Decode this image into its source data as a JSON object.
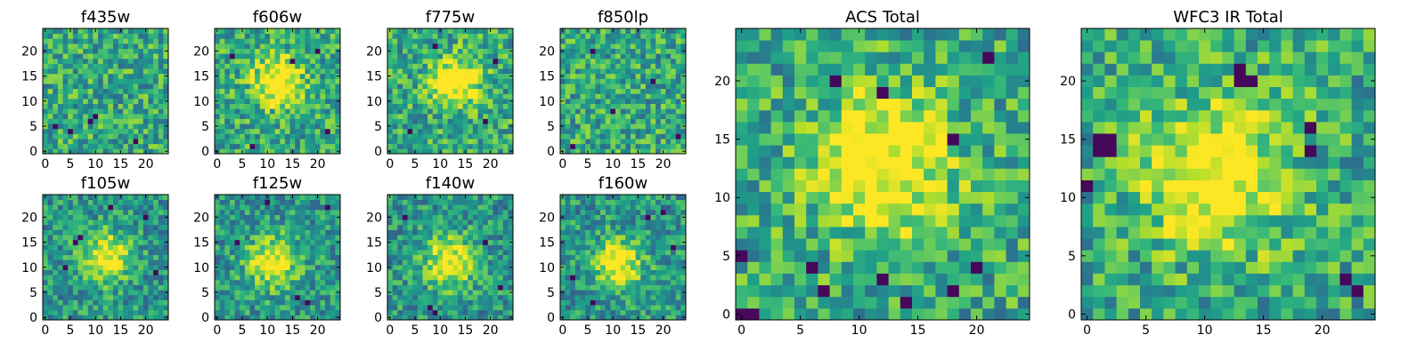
{
  "chart_data": {
    "type": "heatmap",
    "colormap": "viridis",
    "grid": false,
    "legend": "none",
    "panels": [
      {
        "title": "f435w",
        "shape": [
          25,
          25
        ],
        "xticks": [
          0,
          5,
          10,
          15,
          20
        ],
        "yticks": [
          0,
          5,
          10,
          15,
          20
        ],
        "xlim": [
          -0.5,
          24.5
        ],
        "ylim": [
          -0.5,
          24.5
        ],
        "hotspot": null,
        "dark_pixels": [
          [
            10,
            7
          ],
          [
            9,
            6
          ],
          [
            5,
            4
          ],
          [
            18,
            2
          ],
          [
            2,
            5
          ]
        ]
      },
      {
        "title": "f606w",
        "shape": [
          25,
          25
        ],
        "xticks": [
          0,
          5,
          10,
          15,
          20
        ],
        "yticks": [
          0,
          5,
          10,
          15,
          20
        ],
        "xlim": [
          -0.5,
          24.5
        ],
        "ylim": [
          -0.5,
          24.5
        ],
        "hotspot": [
          12,
          14
        ],
        "dark_pixels": [
          [
            7,
            1
          ],
          [
            22,
            4
          ],
          [
            15,
            18
          ],
          [
            3,
            19
          ],
          [
            20,
            20
          ]
        ]
      },
      {
        "title": "f775w",
        "shape": [
          25,
          25
        ],
        "xticks": [
          0,
          5,
          10,
          15,
          20
        ],
        "yticks": [
          0,
          5,
          10,
          15,
          20
        ],
        "xlim": [
          -0.5,
          24.5
        ],
        "ylim": [
          -0.5,
          24.5
        ],
        "hotspot": [
          13,
          14
        ],
        "dark_pixels": [
          [
            4,
            4
          ],
          [
            19,
            6
          ],
          [
            9,
            21
          ],
          [
            21,
            18
          ]
        ]
      },
      {
        "title": "f850lp",
        "shape": [
          25,
          25
        ],
        "xticks": [
          0,
          5,
          10,
          15,
          20
        ],
        "yticks": [
          0,
          5,
          10,
          15,
          20
        ],
        "xlim": [
          -0.5,
          24.5
        ],
        "ylim": [
          -0.5,
          24.5
        ],
        "hotspot": null,
        "dark_pixels": [
          [
            2,
            1
          ],
          [
            10,
            8
          ],
          [
            18,
            14
          ],
          [
            6,
            20
          ],
          [
            23,
            3
          ]
        ]
      },
      {
        "title": "f105w",
        "shape": [
          25,
          25
        ],
        "xticks": [
          0,
          5,
          10,
          15,
          20
        ],
        "yticks": [
          0,
          5,
          10,
          15,
          20
        ],
        "xlim": [
          -0.5,
          24.5
        ],
        "ylim": [
          -0.5,
          24.5
        ],
        "hotspot": [
          12,
          12
        ],
        "dark_pixels": [
          [
            6,
            15
          ],
          [
            7,
            16
          ],
          [
            13,
            22
          ],
          [
            4,
            10
          ],
          [
            20,
            20
          ],
          [
            22,
            9
          ]
        ]
      },
      {
        "title": "f125w",
        "shape": [
          25,
          25
        ],
        "xticks": [
          0,
          5,
          10,
          15,
          20
        ],
        "yticks": [
          0,
          5,
          10,
          15,
          20
        ],
        "xlim": [
          -0.5,
          24.5
        ],
        "ylim": [
          -0.5,
          24.5
        ],
        "hotspot": [
          11,
          11
        ],
        "dark_pixels": [
          [
            4,
            15
          ],
          [
            16,
            4
          ],
          [
            18,
            3
          ],
          [
            10,
            23
          ],
          [
            22,
            22
          ]
        ]
      },
      {
        "title": "f140w",
        "shape": [
          25,
          25
        ],
        "xticks": [
          0,
          5,
          10,
          15,
          20
        ],
        "yticks": [
          0,
          5,
          10,
          15,
          20
        ],
        "xlim": [
          -0.5,
          24.5
        ],
        "ylim": [
          -0.5,
          24.5
        ],
        "hotspot": [
          12,
          11
        ],
        "dark_pixels": [
          [
            19,
            15
          ],
          [
            8,
            2
          ],
          [
            9,
            1
          ],
          [
            3,
            20
          ],
          [
            22,
            6
          ]
        ]
      },
      {
        "title": "f160w",
        "shape": [
          25,
          25
        ],
        "xticks": [
          0,
          5,
          10,
          15,
          20
        ],
        "yticks": [
          0,
          5,
          10,
          15,
          20
        ],
        "xlim": [
          -0.5,
          24.5
        ],
        "ylim": [
          -0.5,
          24.5
        ],
        "hotspot": [
          11,
          11
        ],
        "dark_pixels": [
          [
            17,
            20
          ],
          [
            20,
            21
          ],
          [
            6,
            3
          ],
          [
            22,
            14
          ],
          [
            2,
            8
          ]
        ]
      },
      {
        "title": "ACS Total",
        "shape": [
          25,
          25
        ],
        "xticks": [
          0,
          5,
          10,
          15,
          20
        ],
        "yticks": [
          0,
          5,
          10,
          15,
          20
        ],
        "xlim": [
          -0.5,
          24.5
        ],
        "ylim": [
          -0.5,
          24.5
        ],
        "hotspot": [
          12,
          13
        ],
        "dark_pixels": [
          [
            0,
            0
          ],
          [
            1,
            0
          ],
          [
            0,
            5
          ],
          [
            6,
            4
          ],
          [
            14,
            1
          ],
          [
            18,
            15
          ],
          [
            21,
            22
          ],
          [
            8,
            20
          ],
          [
            12,
            19
          ],
          [
            18,
            2
          ],
          [
            20,
            4
          ],
          [
            7,
            2
          ],
          [
            12,
            3
          ]
        ]
      },
      {
        "title": "WFC3 IR Total",
        "shape": [
          25,
          25
        ],
        "xticks": [
          0,
          5,
          10,
          15,
          20
        ],
        "yticks": [
          0,
          5,
          10,
          15,
          20
        ],
        "xlim": [
          -0.5,
          24.5
        ],
        "ylim": [
          -0.5,
          24.5
        ],
        "hotspot": [
          11,
          12
        ],
        "dark_pixels": [
          [
            1,
            15
          ],
          [
            2,
            15
          ],
          [
            1,
            14
          ],
          [
            2,
            14
          ],
          [
            13,
            20
          ],
          [
            14,
            20
          ],
          [
            13,
            21
          ],
          [
            19,
            14
          ],
          [
            19,
            16
          ],
          [
            0,
            11
          ],
          [
            22,
            3
          ],
          [
            23,
            2
          ]
        ]
      }
    ]
  }
}
